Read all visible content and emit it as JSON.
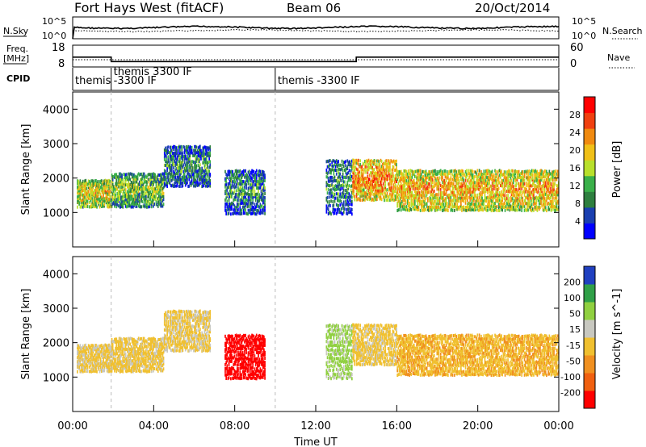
{
  "header": {
    "title": "Fort Hays West (fitACF)",
    "beam": "Beam 06",
    "date": "20/Oct/2014"
  },
  "top_panels": {
    "nsky_label": "N.Sky",
    "nsky_ticks": [
      "10^5",
      "10^0"
    ],
    "nsearch_label": "N.Search",
    "freq_label": "Freq.",
    "freq_unit": "[MHz]",
    "freq_ticks": [
      "18",
      "8"
    ],
    "nave_ticks": [
      "60",
      "0"
    ],
    "nave_label": "Nave",
    "cpid_label": "CPID",
    "cpid_segments": [
      {
        "start": 0.0,
        "end": 1.9,
        "lines": [
          "themis"
        ]
      },
      {
        "start": 1.9,
        "end": 10.0,
        "lines": [
          "themis 3300 IF",
          "-3300 IF"
        ]
      },
      {
        "start": 10.0,
        "end": 24.0,
        "lines": [
          "themis -3300 IF"
        ]
      }
    ]
  },
  "xaxis": {
    "label": "Time UT",
    "ticks": [
      "00:00",
      "04:00",
      "08:00",
      "12:00",
      "16:00",
      "20:00",
      "00:00"
    ]
  },
  "power_panel": {
    "ylabel": "Slant Range [km]",
    "yticks": [
      "4000",
      "3000",
      "2000",
      "1000"
    ],
    "colorbar_label": "Power [dB]",
    "colorbar_ticks": [
      "28",
      "24",
      "20",
      "16",
      "12",
      "8",
      "4"
    ],
    "colors": [
      "#0000ff",
      "#1a3fb0",
      "#2e7f3f",
      "#3ab04a",
      "#b8e02c",
      "#f0c018",
      "#f08a10",
      "#f04010",
      "#ff0000"
    ]
  },
  "velocity_panel": {
    "ylabel": "Slant Range [km]",
    "yticks": [
      "4000",
      "3000",
      "2000",
      "1000"
    ],
    "colorbar_label": "Velocity [m s^-1]",
    "colorbar_ticks": [
      "200",
      "100",
      "50",
      "15",
      "-15",
      "-50",
      "-100",
      "-200"
    ],
    "colors": [
      "#2040c0",
      "#30a048",
      "#90d040",
      "#c8c8c0",
      "#f0c030",
      "#f09020",
      "#f06010",
      "#ff0000"
    ]
  },
  "chart_data": {
    "type": "heatmap",
    "x_range_hours": [
      0,
      24
    ],
    "y_range_km": [
      0,
      4500
    ],
    "freq_mhz": [
      {
        "start": 0.0,
        "end": 1.9,
        "value": 12.5
      },
      {
        "start": 1.9,
        "end": 14.0,
        "value": 10.5
      },
      {
        "start": 14.0,
        "end": 24.0,
        "value": 12.5
      }
    ],
    "echo_regions": [
      {
        "start": 0.2,
        "end": 1.9,
        "range_km": [
          1200,
          2000
        ],
        "power_db": 18,
        "velocity_ms": 10
      },
      {
        "start": 1.9,
        "end": 4.5,
        "range_km": [
          1200,
          2200
        ],
        "power_db": 14,
        "velocity_ms": 5
      },
      {
        "start": 4.5,
        "end": 6.8,
        "range_km": [
          1800,
          3000
        ],
        "power_db": 10,
        "velocity_ms": 8
      },
      {
        "start": 7.5,
        "end": 9.5,
        "range_km": [
          1000,
          2300
        ],
        "power_db": 10,
        "velocity_ms": -180
      },
      {
        "start": 12.5,
        "end": 13.8,
        "range_km": [
          1000,
          2600
        ],
        "power_db": 10,
        "velocity_ms": 60
      },
      {
        "start": 13.8,
        "end": 16.0,
        "range_km": [
          1400,
          2600
        ],
        "power_db": 22,
        "velocity_ms": 5
      },
      {
        "start": 16.0,
        "end": 24.0,
        "range_km": [
          1100,
          2300
        ],
        "power_db": 20,
        "velocity_ms": -8
      }
    ]
  }
}
